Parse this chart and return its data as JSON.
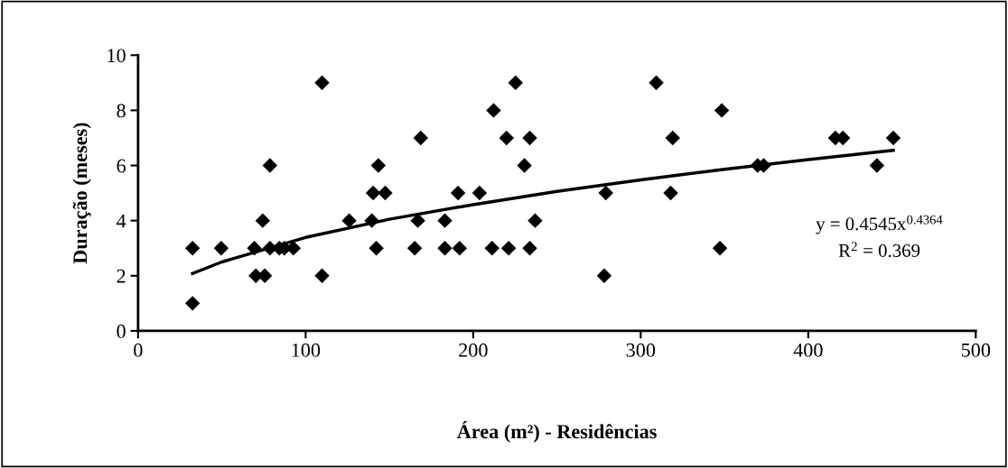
{
  "chart_data": {
    "type": "scatter",
    "xlabel": "Área (m²) - Residências",
    "ylabel": "Duração (meses)",
    "xlim": [
      0,
      500
    ],
    "xticks": [
      0,
      100,
      200,
      300,
      400,
      500
    ],
    "ylim": [
      0,
      10
    ],
    "yticks": [
      0,
      2,
      4,
      6,
      8,
      10
    ],
    "grid": false,
    "legend": false,
    "series": [
      {
        "type": "scatter",
        "marker": "diamond",
        "color": "#000000",
        "x": [
          32.5,
          32.5,
          49.6,
          69.4,
          70.3,
          75.6,
          74.4,
          78.7,
          78.7,
          84.3,
          87.3,
          92.7,
          109.8,
          109.8,
          126,
          139.5,
          140.3,
          143.4,
          142.2,
          147.5,
          167,
          165.1,
          168.7,
          183.1,
          183.1,
          191,
          191.9,
          203.8,
          211.3,
          212.2,
          219.9,
          221.2,
          225.3,
          230.6,
          233.8,
          233.8,
          237,
          278.2,
          279.2,
          309.3,
          319.1,
          317.9,
          348.4,
          347.3,
          369.8,
          373.4,
          416.2,
          420.7,
          441,
          450.8
        ],
        "values": [
          3,
          1,
          3,
          3,
          2,
          2,
          4,
          6,
          3,
          3,
          3,
          3,
          9,
          2,
          4,
          4,
          5,
          6,
          3,
          5,
          4,
          3,
          7,
          4,
          3,
          5,
          3,
          5,
          3,
          8,
          7,
          3,
          9,
          6,
          7,
          3,
          4,
          2,
          5,
          9,
          7,
          5,
          8,
          3,
          6,
          6,
          7,
          7,
          6,
          7
        ]
      },
      {
        "type": "line",
        "marker": "none",
        "line_style": "solid",
        "color": "#000000",
        "x": [
          32.5,
          50,
          100,
          150,
          200,
          250,
          300,
          350,
          400,
          450.8
        ],
        "values": [
          2.08,
          2.5,
          3.39,
          4.05,
          4.58,
          5.06,
          5.48,
          5.86,
          6.21,
          6.55
        ]
      }
    ],
    "annotations": [
      "y = 0.4545x$^{0.4364}$",
      "R$^{2}$ = 0.369"
    ]
  }
}
